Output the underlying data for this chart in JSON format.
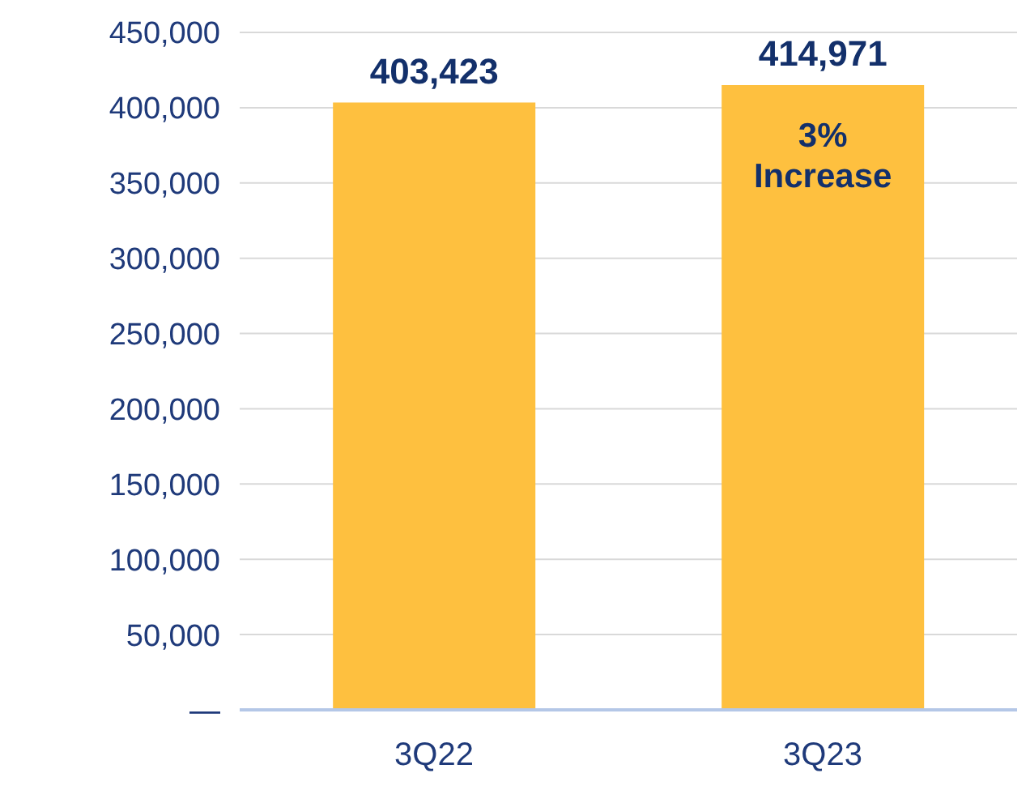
{
  "chart_data": {
    "type": "bar",
    "categories": [
      "3Q22",
      "3Q23"
    ],
    "values": [
      403423,
      414971
    ],
    "value_labels": [
      "403,423",
      "414,971"
    ],
    "color": "#fec03f",
    "ylim": [
      0,
      450000
    ],
    "yticks": [
      {
        "value": 0,
        "label": "—"
      },
      {
        "value": 50000,
        "label": "50,000"
      },
      {
        "value": 100000,
        "label": "100,000"
      },
      {
        "value": 150000,
        "label": "150,000"
      },
      {
        "value": 200000,
        "label": "200,000"
      },
      {
        "value": 250000,
        "label": "250,000"
      },
      {
        "value": 300000,
        "label": "300,000"
      },
      {
        "value": 350000,
        "label": "350,000"
      },
      {
        "value": 400000,
        "label": "400,000"
      },
      {
        "value": 450000,
        "label": "450,000"
      }
    ],
    "grid": "y",
    "annotations": [
      "3% Increase"
    ]
  }
}
